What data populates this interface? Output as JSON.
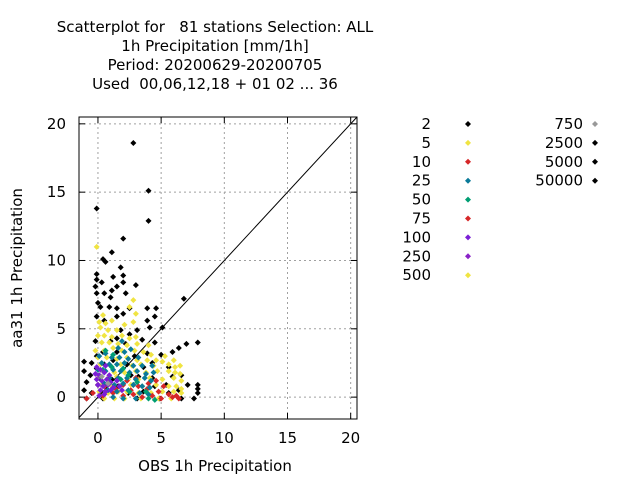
{
  "chart_data": {
    "type": "scatter",
    "title_lines": [
      "Scatterplot for   81 stations Selection: ALL",
      "1h Precipitation [mm/1h]",
      "Period: 20200629-20200705",
      "Used  00,06,12,18 + 01 02 ... 36"
    ],
    "xlabel": "OBS 1h Precipitation",
    "ylabel": "aa31 1h Precipitation",
    "xlim": [
      -1.5,
      20.5
    ],
    "ylim": [
      -1.6,
      20.5
    ],
    "xticks": [
      "0",
      "5",
      "10",
      "15",
      "20"
    ],
    "yticks": [
      "0",
      "5",
      "10",
      "15",
      "20"
    ],
    "grid": true,
    "diagonal": true,
    "legend_placement": "right",
    "legend": [
      {
        "label": "2",
        "color": "#000000"
      },
      {
        "label": "5",
        "color": "#f0e442"
      },
      {
        "label": "10",
        "color": "#d62728"
      },
      {
        "label": "25",
        "color": "#0a7a99"
      },
      {
        "label": "50",
        "color": "#009e73"
      },
      {
        "label": "75",
        "color": "#d62728"
      },
      {
        "label": "100",
        "color": "#7b1fd6"
      },
      {
        "label": "250",
        "color": "#8a22c8"
      },
      {
        "label": "500",
        "color": "#f0e442"
      },
      {
        "label": "750",
        "color": "#999999"
      },
      {
        "label": "2500",
        "color": "#000000"
      },
      {
        "label": "5000",
        "color": "#000000"
      },
      {
        "label": "50000",
        "color": "#000000"
      }
    ],
    "series": [
      {
        "color": "#000000",
        "points": [
          [
            2.8,
            18.6
          ],
          [
            4.0,
            15.1
          ],
          [
            4.0,
            12.9
          ],
          [
            -0.1,
            13.8
          ],
          [
            2.0,
            11.6
          ],
          [
            0.4,
            10.1
          ],
          [
            0.6,
            9.9
          ],
          [
            1.1,
            10.6
          ],
          [
            -0.1,
            9.0
          ],
          [
            -0.1,
            8.6
          ],
          [
            0.3,
            8.4
          ],
          [
            -0.2,
            8.1
          ],
          [
            1.2,
            8.8
          ],
          [
            1.8,
            9.5
          ],
          [
            2.0,
            8.9
          ],
          [
            2.0,
            8.4
          ],
          [
            -0.1,
            7.6
          ],
          [
            0.5,
            7.6
          ],
          [
            1.1,
            7.8
          ],
          [
            1.5,
            8.1
          ],
          [
            2.2,
            7.6
          ],
          [
            3.0,
            8.2
          ],
          [
            0.0,
            6.9
          ],
          [
            0.2,
            6.6
          ],
          [
            0.9,
            6.6
          ],
          [
            1.0,
            7.3
          ],
          [
            1.5,
            6.5
          ],
          [
            2.5,
            6.5
          ],
          [
            3.9,
            6.5
          ],
          [
            4.6,
            6.5
          ],
          [
            6.8,
            7.2
          ],
          [
            -0.1,
            5.9
          ],
          [
            0.5,
            5.6
          ],
          [
            1.5,
            5.9
          ],
          [
            2.0,
            6.1
          ],
          [
            3.9,
            5.6
          ],
          [
            4.5,
            5.9
          ],
          [
            1.8,
            4.9
          ],
          [
            2.5,
            4.6
          ],
          [
            3.1,
            4.9
          ],
          [
            4.1,
            5.1
          ],
          [
            5.1,
            5.1
          ],
          [
            -0.2,
            4.1
          ],
          [
            1.0,
            4.1
          ],
          [
            1.5,
            4.3
          ],
          [
            2.2,
            3.9
          ],
          [
            3.5,
            4.2
          ],
          [
            4.5,
            4.0
          ],
          [
            -0.1,
            3.0
          ],
          [
            0.4,
            3.3
          ],
          [
            1.5,
            3.3
          ],
          [
            2.9,
            3.0
          ],
          [
            3.9,
            3.2
          ],
          [
            5.0,
            3.1
          ],
          [
            5.9,
            3.3
          ],
          [
            6.4,
            3.6
          ],
          [
            7.0,
            3.9
          ],
          [
            7.9,
            4.0
          ],
          [
            -1.1,
            2.6
          ],
          [
            -0.5,
            2.5
          ],
          [
            -0.1,
            2.1
          ],
          [
            0.5,
            2.4
          ],
          [
            1.2,
            2.7
          ],
          [
            2.3,
            2.4
          ],
          [
            3.6,
            2.2
          ],
          [
            4.3,
            2.5
          ],
          [
            5.6,
            2.2
          ],
          [
            -1.1,
            1.9
          ],
          [
            -0.6,
            1.6
          ],
          [
            0.1,
            1.4
          ],
          [
            1.1,
            1.3
          ],
          [
            2.6,
            1.6
          ],
          [
            3.2,
            1.5
          ],
          [
            4.3,
            1.4
          ],
          [
            5.9,
            1.5
          ],
          [
            6.6,
            1.6
          ],
          [
            7.9,
            0.9
          ],
          [
            -0.9,
            1.1
          ],
          [
            0.0,
            0.9
          ],
          [
            1.6,
            0.8
          ],
          [
            2.8,
            0.9
          ],
          [
            4.5,
            0.8
          ],
          [
            5.4,
            0.9
          ],
          [
            7.1,
            0.9
          ],
          [
            7.9,
            0.6
          ],
          [
            -1.1,
            0.5
          ],
          [
            -0.5,
            0.3
          ],
          [
            0.2,
            0.4
          ],
          [
            2.4,
            0.3
          ],
          [
            3.6,
            0.4
          ],
          [
            5.6,
            0.3
          ],
          [
            6.4,
            0.5
          ],
          [
            7.9,
            0.3
          ],
          [
            -0.9,
            -0.1
          ],
          [
            0.4,
            -0.1
          ],
          [
            3.1,
            -0.1
          ],
          [
            4.9,
            -0.1
          ],
          [
            6.6,
            -0.1
          ],
          [
            7.6,
            -0.1
          ]
        ]
      },
      {
        "color": "#f0e442",
        "points": [
          [
            -0.1,
            11.0
          ],
          [
            2.8,
            7.1
          ],
          [
            2.5,
            6.6
          ],
          [
            3.0,
            6.1
          ],
          [
            0.4,
            6.0
          ],
          [
            0.1,
            5.5
          ],
          [
            0.6,
            5.4
          ],
          [
            1.1,
            5.6
          ],
          [
            0.2,
            5.1
          ],
          [
            0.8,
            4.9
          ],
          [
            1.5,
            4.9
          ],
          [
            2.1,
            5.3
          ],
          [
            2.8,
            5.5
          ],
          [
            0.0,
            4.5
          ],
          [
            0.5,
            4.5
          ],
          [
            1.1,
            4.4
          ],
          [
            1.9,
            4.5
          ],
          [
            2.5,
            4.3
          ],
          [
            3.0,
            4.4
          ],
          [
            0.3,
            4.0
          ],
          [
            0.9,
            4.0
          ],
          [
            1.6,
            3.9
          ],
          [
            2.3,
            3.8
          ],
          [
            3.1,
            3.9
          ],
          [
            4.0,
            3.8
          ],
          [
            -0.2,
            3.4
          ],
          [
            0.5,
            3.4
          ],
          [
            1.2,
            3.6
          ],
          [
            1.9,
            3.4
          ],
          [
            2.9,
            3.4
          ],
          [
            3.6,
            3.3
          ],
          [
            4.2,
            3.1
          ],
          [
            5.3,
            3.0
          ],
          [
            0.0,
            2.9
          ],
          [
            0.7,
            2.9
          ],
          [
            1.5,
            2.8
          ],
          [
            2.3,
            2.9
          ],
          [
            3.1,
            2.7
          ],
          [
            3.9,
            2.7
          ],
          [
            4.6,
            2.7
          ],
          [
            5.1,
            2.6
          ],
          [
            6.0,
            2.7
          ],
          [
            0.2,
            2.4
          ],
          [
            1.0,
            2.3
          ],
          [
            1.8,
            2.4
          ],
          [
            2.7,
            2.3
          ],
          [
            3.4,
            2.4
          ],
          [
            4.4,
            2.3
          ],
          [
            5.6,
            2.4
          ],
          [
            6.1,
            2.2
          ],
          [
            6.5,
            2.3
          ],
          [
            0.4,
            1.9
          ],
          [
            1.3,
            1.8
          ],
          [
            2.1,
            1.8
          ],
          [
            3.0,
            1.9
          ],
          [
            3.8,
            1.8
          ],
          [
            4.7,
            1.9
          ],
          [
            5.6,
            1.9
          ],
          [
            6.1,
            1.8
          ],
          [
            6.5,
            1.7
          ],
          [
            0.0,
            1.4
          ],
          [
            0.8,
            1.4
          ],
          [
            1.5,
            1.5
          ],
          [
            2.4,
            1.3
          ],
          [
            3.2,
            1.3
          ],
          [
            4.1,
            1.4
          ],
          [
            5.1,
            1.3
          ],
          [
            6.0,
            1.4
          ],
          [
            6.6,
            1.2
          ],
          [
            0.3,
            0.9
          ],
          [
            1.0,
            0.9
          ],
          [
            1.8,
            0.8
          ],
          [
            2.6,
            0.9
          ],
          [
            3.5,
            0.8
          ],
          [
            4.6,
            0.9
          ],
          [
            5.6,
            0.8
          ],
          [
            6.2,
            0.8
          ],
          [
            6.6,
            0.6
          ],
          [
            0.1,
            0.4
          ],
          [
            0.8,
            0.3
          ],
          [
            1.6,
            0.4
          ],
          [
            2.3,
            0.4
          ],
          [
            3.2,
            0.3
          ],
          [
            4.2,
            0.3
          ],
          [
            5.1,
            0.4
          ],
          [
            6.0,
            0.4
          ],
          [
            6.6,
            0.3
          ],
          [
            0.5,
            -0.1
          ],
          [
            1.3,
            -0.1
          ],
          [
            2.1,
            -0.1
          ],
          [
            3.4,
            -0.1
          ],
          [
            4.8,
            -0.1
          ],
          [
            5.8,
            -0.1
          ]
        ]
      },
      {
        "color": "#d62728",
        "points": [
          [
            0.0,
            0.9
          ],
          [
            0.5,
            0.8
          ],
          [
            0.9,
            1.1
          ],
          [
            1.4,
            0.6
          ],
          [
            2.0,
            0.9
          ],
          [
            2.6,
            0.5
          ],
          [
            3.2,
            0.8
          ],
          [
            3.9,
            0.6
          ],
          [
            4.8,
            0.4
          ],
          [
            5.6,
            0.2
          ],
          [
            6.2,
            0.1
          ],
          [
            -0.9,
            -0.1
          ],
          [
            -0.4,
            0.3
          ],
          [
            0.4,
            0.1
          ],
          [
            1.2,
            0.3
          ],
          [
            2.0,
            0.1
          ],
          [
            2.8,
            0.2
          ],
          [
            3.5,
            0.0
          ],
          [
            4.3,
            0.1
          ],
          [
            5.0,
            -0.1
          ],
          [
            5.9,
            0.0
          ],
          [
            6.4,
            -0.1
          ],
          [
            1.6,
            1.4
          ],
          [
            2.3,
            1.2
          ],
          [
            3.0,
            1.4
          ],
          [
            4.0,
            1.0
          ],
          [
            4.6,
            1.2
          ],
          [
            5.2,
            0.8
          ]
        ]
      },
      {
        "color": "#0a7a99",
        "points": [
          [
            1.9,
            4.1
          ],
          [
            1.6,
            3.6
          ],
          [
            2.1,
            3.3
          ],
          [
            2.6,
            3.5
          ],
          [
            0.1,
            3.0
          ],
          [
            0.6,
            3.2
          ],
          [
            1.1,
            2.9
          ],
          [
            1.7,
            2.9
          ],
          [
            2.4,
            2.8
          ],
          [
            3.2,
            2.9
          ],
          [
            0.3,
            2.5
          ],
          [
            0.9,
            2.4
          ],
          [
            1.5,
            2.4
          ],
          [
            2.1,
            2.5
          ],
          [
            2.8,
            2.3
          ],
          [
            3.5,
            2.3
          ],
          [
            4.3,
            2.3
          ],
          [
            0.0,
            2.0
          ],
          [
            0.6,
            1.9
          ],
          [
            1.2,
            2.0
          ],
          [
            1.8,
            1.9
          ],
          [
            2.5,
            1.8
          ],
          [
            3.1,
            1.9
          ],
          [
            3.8,
            1.7
          ],
          [
            4.4,
            1.8
          ],
          [
            0.2,
            1.5
          ],
          [
            0.9,
            1.4
          ],
          [
            1.6,
            1.4
          ],
          [
            2.3,
            1.4
          ],
          [
            3.0,
            1.3
          ],
          [
            3.7,
            1.4
          ],
          [
            4.2,
            1.2
          ],
          [
            0.5,
            1.0
          ],
          [
            1.3,
            0.9
          ],
          [
            2.0,
            1.0
          ],
          [
            2.8,
            0.9
          ],
          [
            3.5,
            0.8
          ],
          [
            4.1,
            0.7
          ],
          [
            0.8,
            0.5
          ],
          [
            1.5,
            0.4
          ],
          [
            2.4,
            0.5
          ],
          [
            3.3,
            0.3
          ],
          [
            4.0,
            0.2
          ],
          [
            1.2,
            0.0
          ],
          [
            2.0,
            -0.1
          ],
          [
            3.0,
            -0.1
          ]
        ]
      },
      {
        "color": "#009e73",
        "points": [
          [
            0.6,
            3.4
          ],
          [
            1.2,
            3.1
          ],
          [
            2.4,
            1.6
          ],
          [
            1.1,
            2.2
          ],
          [
            1.8,
            1.3
          ],
          [
            3.1,
            1.1
          ],
          [
            2.5,
            0.4
          ],
          [
            3.8,
            0.4
          ],
          [
            4.0,
            -0.1
          ],
          [
            4.5,
            -0.2
          ],
          [
            0.4,
            2.0
          ],
          [
            2.0,
            2.1
          ]
        ]
      },
      {
        "color": "#7b1fd6",
        "points": [
          [
            -0.1,
            2.2
          ],
          [
            0.2,
            2.0
          ],
          [
            0.6,
            2.3
          ],
          [
            -0.2,
            1.7
          ],
          [
            0.1,
            1.6
          ],
          [
            0.5,
            1.8
          ],
          [
            0.9,
            1.6
          ],
          [
            -0.1,
            1.3
          ],
          [
            0.3,
            1.2
          ],
          [
            0.7,
            1.3
          ],
          [
            1.0,
            1.1
          ],
          [
            0.0,
            0.9
          ],
          [
            0.4,
            0.8
          ],
          [
            0.8,
            0.9
          ],
          [
            1.2,
            0.7
          ],
          [
            0.2,
            0.5
          ],
          [
            0.6,
            0.4
          ],
          [
            1.0,
            0.5
          ],
          [
            0.1,
            0.1
          ],
          [
            0.5,
            0.2
          ],
          [
            1.5,
            1.2
          ],
          [
            1.7,
            0.8
          ],
          [
            1.9,
            0.5
          ]
        ]
      },
      {
        "color": "#999999",
        "points": [
          [
            0.3,
            1.5
          ],
          [
            0.8,
            1.0
          ]
        ]
      }
    ]
  }
}
